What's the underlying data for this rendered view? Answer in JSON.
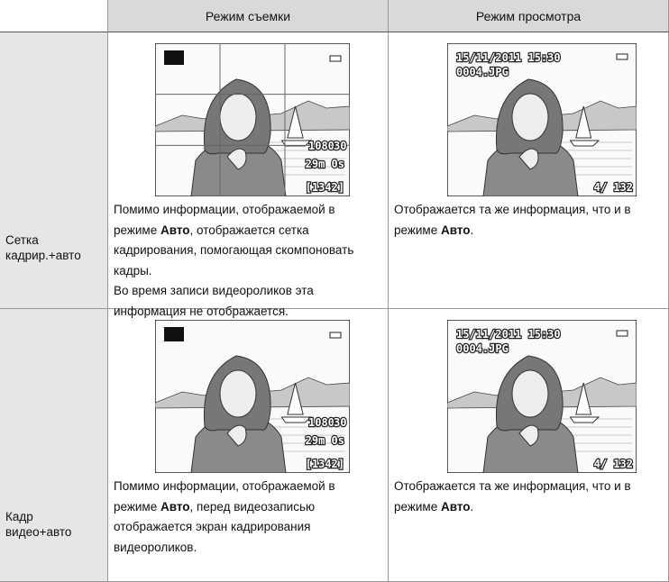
{
  "header": {
    "shoot": "Режим съемки",
    "view": "Режим просмотра"
  },
  "rows": [
    {
      "label": "Сетка кадрир.+авто",
      "shoot": {
        "screen": {
          "movie": "1080",
          "fps": "30",
          "time": "29m 0s",
          "count": "[1342]"
        },
        "paragraphs": [
          [
            "Помимо информации, отображаемой в режиме ",
            "Авто",
            ", отображается сетка кадрирования, помогающая скомпоновать кадры."
          ],
          [
            "Во время записи видеороликов эта информация не отображается."
          ]
        ]
      },
      "view": {
        "screen": {
          "date": "15/11/2011 15:30",
          "file": "0004.JPG",
          "counter": "4/ 132"
        },
        "paragraphs": [
          [
            "Отображается та же информация, что и в режиме ",
            "Авто",
            "."
          ]
        ]
      }
    },
    {
      "label": "Кадр видео+авто",
      "shoot": {
        "screen": {
          "movie": "1080",
          "fps": "30",
          "time": "29m 0s",
          "count": "[1342]"
        },
        "paragraphs": [
          [
            "Помимо информации, отображаемой в режиме ",
            "Авто",
            ", перед видеозаписью отображается экран кадрирования видеороликов."
          ]
        ]
      },
      "view": {
        "screen": {
          "date": "15/11/2011 15:30",
          "file": "0004.JPG",
          "counter": "4/ 132"
        },
        "paragraphs": [
          [
            "Отображается та же информация, что и в режиме ",
            "Авто",
            "."
          ]
        ]
      }
    }
  ]
}
